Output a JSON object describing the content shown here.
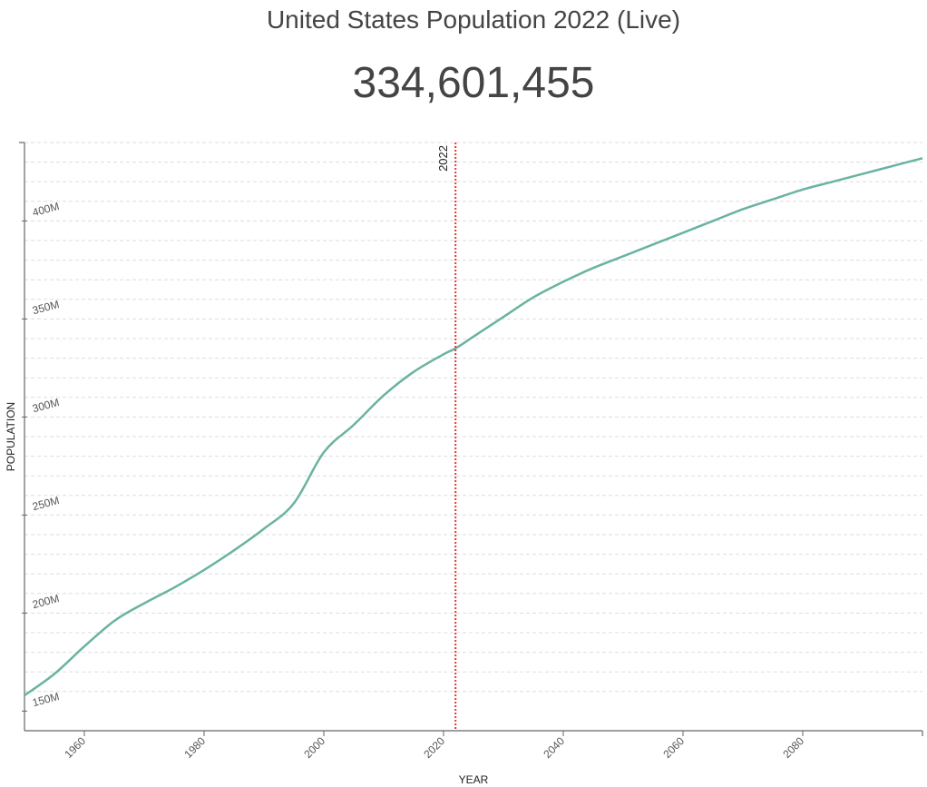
{
  "header": {
    "title": "United States Population 2022 (Live)",
    "live_count": "334,601,455"
  },
  "chart_data": {
    "type": "line",
    "title": "United States Population 2022 (Live)",
    "xlabel": "YEAR",
    "ylabel": "POPULATION",
    "xlim": [
      1950,
      2100
    ],
    "ylim": [
      140,
      440
    ],
    "x_ticks": [
      1960,
      1980,
      2000,
      2020,
      2040,
      2060,
      2080
    ],
    "y_ticks": [
      {
        "value": 150,
        "label": "150M"
      },
      {
        "value": 200,
        "label": "200M"
      },
      {
        "value": 250,
        "label": "250M"
      },
      {
        "value": 300,
        "label": "300M"
      },
      {
        "value": 350,
        "label": "350M"
      },
      {
        "value": 400,
        "label": "400M"
      }
    ],
    "gridlines": [
      160,
      170,
      180,
      190,
      200,
      210,
      220,
      230,
      240,
      250,
      260,
      270,
      280,
      290,
      300,
      310,
      320,
      330,
      340,
      350,
      360,
      370,
      380,
      390,
      400,
      410,
      420,
      430,
      440
    ],
    "grid": true,
    "series": [
      {
        "color": "#69b3a2",
        "x": [
          1950,
          1955,
          1960,
          1965,
          1970,
          1975,
          1980,
          1985,
          1990,
          1995,
          2000,
          2005,
          2010,
          2015,
          2020,
          2022,
          2025,
          2030,
          2035,
          2040,
          2045,
          2050,
          2055,
          2060,
          2065,
          2070,
          2075,
          2080,
          2085,
          2090,
          2095,
          2100
        ],
        "values": [
          158,
          169,
          183,
          196,
          205,
          213,
          222,
          232,
          243,
          256,
          282,
          296,
          311,
          323,
          332,
          335,
          341,
          351,
          361,
          369,
          376,
          382,
          388,
          394,
          400,
          406,
          411,
          416,
          420,
          424,
          428,
          432
        ]
      }
    ],
    "marker": {
      "x": 2022,
      "label": "2022",
      "color": "#e53935"
    }
  }
}
